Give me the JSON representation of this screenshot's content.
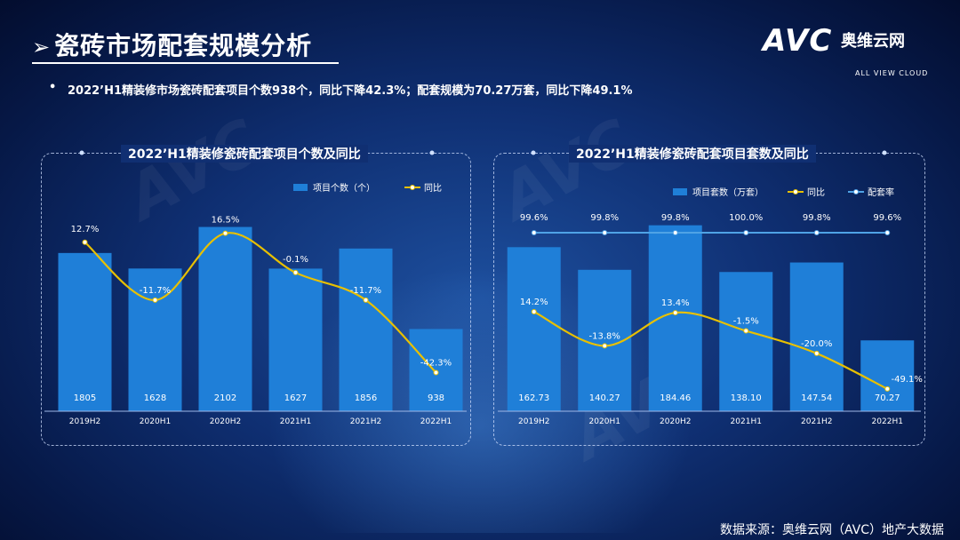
{
  "page": {
    "title_arrow": "➢",
    "title": "瓷砖市场配套规模分析",
    "summary_bullet": "•",
    "summary": "2022’H1精装修市场瓷砖配套项目个数938个，同比下降42.3%；配套规模为70.27万套，同比下降49.1%",
    "source": "数据来源：奥维云网（AVC）地产大数据"
  },
  "logo": {
    "mark": "AVC",
    "name_cn": "奥维云网",
    "name_en": "ALL VIEW CLOUD"
  },
  "colors": {
    "bar": "#1f7fd8",
    "line": "#e8c000",
    "rate": "#4fa3e6",
    "text": "#ffffff"
  },
  "chart_data": [
    {
      "type": "bar",
      "title": "2022’H1精装修瓷砖配套项目个数及同比",
      "categories": [
        "2019H2",
        "2020H1",
        "2020H2",
        "2021H1",
        "2021H2",
        "2022H1"
      ],
      "series": [
        {
          "name": "项目个数（个）",
          "type": "bar",
          "values": [
            1805,
            1628,
            2102,
            1627,
            1856,
            938
          ],
          "labels": [
            "1805",
            "1628",
            "2102",
            "1627",
            "1856",
            "938"
          ]
        },
        {
          "name": "同比",
          "type": "line",
          "values": [
            12.7,
            -11.7,
            16.5,
            -0.1,
            -11.7,
            -42.3
          ],
          "labels": [
            "12.7%",
            "-11.7%",
            "16.5%",
            "-0.1%",
            "-11.7%",
            "-42.3%"
          ]
        }
      ],
      "ylim": [
        0,
        2300
      ],
      "ylim_secondary": [
        -50,
        25
      ],
      "legend_position": "top-right"
    },
    {
      "type": "bar",
      "title": "2022’H1精装修瓷砖配套项目套数及同比",
      "categories": [
        "2019H2",
        "2020H1",
        "2020H2",
        "2021H1",
        "2021H2",
        "2022H1"
      ],
      "series": [
        {
          "name": "项目套数（万套）",
          "type": "bar",
          "values": [
            162.73,
            140.27,
            184.46,
            138.1,
            147.54,
            70.27
          ],
          "labels": [
            "162.73",
            "140.27",
            "184.46",
            "138.10",
            "147.54",
            "70.27"
          ]
        },
        {
          "name": "同比",
          "type": "line",
          "values": [
            14.2,
            -13.8,
            13.4,
            -1.5,
            -20.0,
            -49.1
          ],
          "labels": [
            "14.2%",
            "-13.8%",
            "13.4%",
            "-1.5%",
            "-20.0%",
            "-49.1%"
          ]
        },
        {
          "name": "配套率",
          "type": "line",
          "values": [
            99.6,
            99.8,
            99.8,
            100.0,
            99.8,
            99.6
          ],
          "labels": [
            "99.6%",
            "99.8%",
            "99.8%",
            "100.0%",
            "99.8%",
            "99.6%"
          ]
        }
      ],
      "ylim": [
        0,
        200
      ],
      "ylim_secondary": [
        -55,
        20
      ],
      "legend_position": "top-right"
    }
  ]
}
